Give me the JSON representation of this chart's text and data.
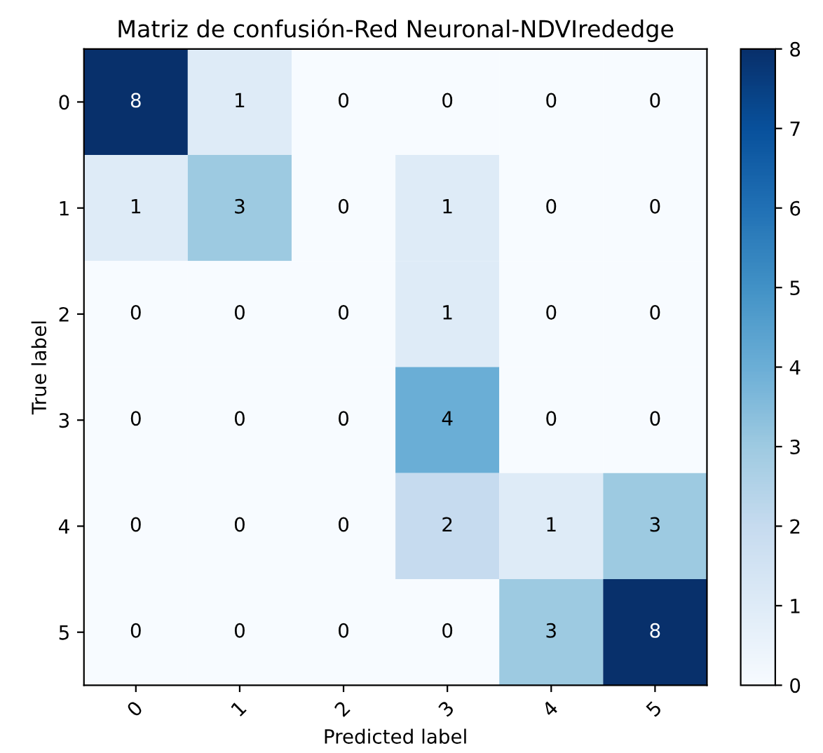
{
  "chart_data": {
    "type": "heatmap",
    "title": "Matriz de confusión-Red Neuronal-NDVIrededge",
    "xlabel": "Predicted label",
    "ylabel": "True label",
    "categories": [
      "0",
      "1",
      "2",
      "3",
      "4",
      "5"
    ],
    "y_categories": [
      "0",
      "1",
      "2",
      "3",
      "4",
      "5"
    ],
    "cells": [
      [
        8,
        1,
        0,
        0,
        0,
        0
      ],
      [
        1,
        3,
        0,
        1,
        0,
        0
      ],
      [
        0,
        0,
        0,
        1,
        0,
        0
      ],
      [
        0,
        0,
        0,
        4,
        0,
        0
      ],
      [
        0,
        0,
        0,
        2,
        1,
        3
      ],
      [
        0,
        0,
        0,
        0,
        3,
        8
      ]
    ],
    "clim": [
      0,
      8
    ],
    "cticks": [
      0,
      1,
      2,
      3,
      4,
      5,
      6,
      7,
      8
    ],
    "data_labels": true
  }
}
